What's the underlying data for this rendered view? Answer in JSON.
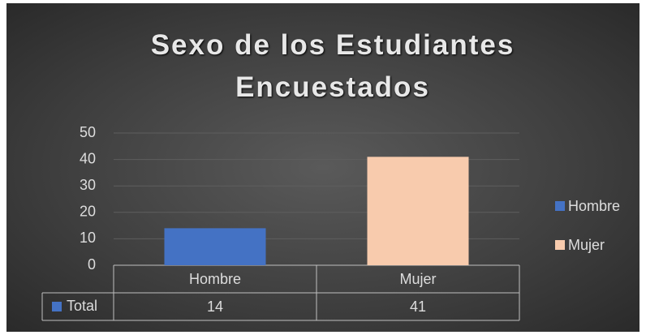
{
  "chart_data": {
    "type": "bar",
    "title": "Sexo de los Estudiantes Encuestados",
    "categories": [
      "Hombre",
      "Mujer"
    ],
    "series": [
      {
        "name": "Total",
        "color": "#4472c4",
        "values": [
          14,
          41
        ]
      }
    ],
    "point_colors": [
      "#4472c4",
      "#f8cbad"
    ],
    "ylim": [
      0,
      50
    ],
    "yticks": [
      0,
      10,
      20,
      30,
      40,
      50
    ],
    "grid": true,
    "legend": "right",
    "data_table": true
  }
}
